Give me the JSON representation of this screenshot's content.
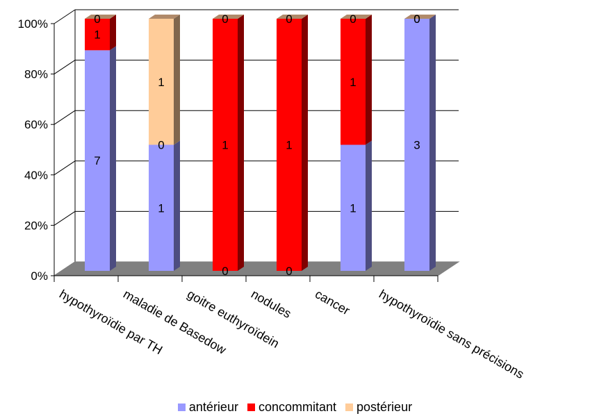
{
  "chart_data": {
    "type": "bar",
    "stacked": "percent",
    "three_d": true,
    "categories": [
      "hypothyroïdie par TH",
      "maladie de Basedow",
      "goitre euthyroïdein",
      "nodules",
      "cancer",
      "hypothyroïdie sans précisions"
    ],
    "series": [
      {
        "name": "antérieur",
        "values": [
          7,
          1,
          0,
          0,
          1,
          3
        ],
        "color": "#9999ff"
      },
      {
        "name": "concommitant",
        "values": [
          1,
          0,
          1,
          1,
          1,
          0
        ],
        "color": "#ff0000"
      },
      {
        "name": "postérieur",
        "values": [
          0,
          1,
          0,
          0,
          0,
          0
        ],
        "color": "#ffcc99"
      }
    ],
    "ytick_labels": [
      "0%",
      "20%",
      "40%",
      "60%",
      "80%",
      "100%"
    ],
    "ylim": [
      0,
      100
    ],
    "grid": true,
    "legend_position": "bottom",
    "floor_color": "#808080"
  }
}
